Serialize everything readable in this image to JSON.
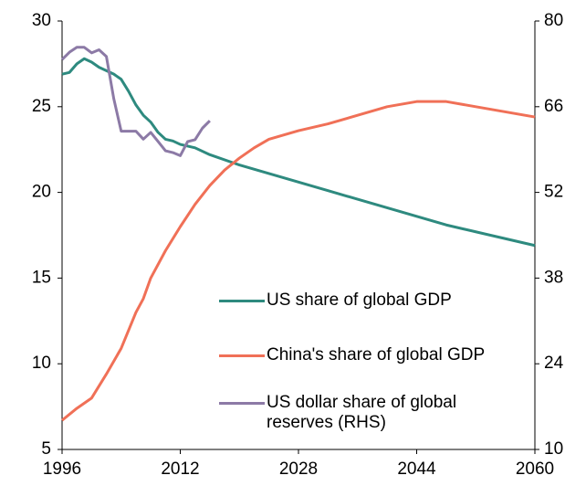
{
  "chart_data": {
    "type": "line",
    "xlim": [
      1996,
      2060
    ],
    "xticks": [
      1996,
      2012,
      2028,
      2044,
      2060
    ],
    "ylim": [
      5,
      30
    ],
    "yticks": [
      5,
      10,
      15,
      20,
      25,
      30
    ],
    "y2lim": [
      10,
      80
    ],
    "y2ticks": [
      10,
      24,
      38,
      52,
      66,
      80
    ],
    "series": [
      {
        "name": "US share of global GDP",
        "color": "#2e8a7f",
        "x": [
          1996,
          1997,
          1998,
          1999,
          2000,
          2001,
          2002,
          2003,
          2004,
          2005,
          2006,
          2007,
          2008,
          2009,
          2010,
          2011,
          2012,
          2013,
          2014,
          2016,
          2020,
          2024,
          2028,
          2032,
          2036,
          2040,
          2044,
          2048,
          2052,
          2056,
          2060
        ],
        "values": [
          26.9,
          27.0,
          27.5,
          27.8,
          27.6,
          27.3,
          27.1,
          26.9,
          26.6,
          25.9,
          25.1,
          24.5,
          24.1,
          23.5,
          23.1,
          23.0,
          22.8,
          22.7,
          22.6,
          22.2,
          21.6,
          21.1,
          20.6,
          20.1,
          19.6,
          19.1,
          18.6,
          18.1,
          17.7,
          17.3,
          16.9
        ]
      },
      {
        "name": "China's share of global GDP",
        "color": "#f07057",
        "x": [
          1996,
          1998,
          2000,
          2002,
          2004,
          2006,
          2007,
          2008,
          2010,
          2012,
          2014,
          2016,
          2018,
          2020,
          2022,
          2024,
          2028,
          2032,
          2036,
          2040,
          2044,
          2048,
          2052,
          2056,
          2060
        ],
        "values": [
          6.7,
          7.4,
          8.0,
          9.4,
          10.9,
          13.0,
          13.8,
          15.0,
          16.6,
          18.0,
          19.3,
          20.4,
          21.3,
          22.0,
          22.6,
          23.1,
          23.6,
          24.0,
          24.5,
          25.0,
          25.3,
          25.3,
          25.0,
          24.7,
          24.4
        ]
      },
      {
        "name": "US dollar share of global reserves (RHS)",
        "color": "#8c7aa6",
        "axis": "y2",
        "x": [
          1996,
          1997,
          1998,
          1999,
          2000,
          2001,
          2002,
          2003,
          2004,
          2005,
          2006,
          2007,
          2008,
          2009,
          2010,
          2011,
          2012,
          2013,
          2014,
          2015,
          2016
        ],
        "values": [
          73.7,
          74.9,
          75.7,
          75.7,
          74.8,
          75.3,
          74.2,
          67.3,
          62.0,
          62.0,
          62.0,
          60.7,
          61.8,
          60.3,
          58.8,
          58.5,
          58.0,
          60.3,
          60.6,
          62.5,
          63.7
        ]
      }
    ]
  }
}
